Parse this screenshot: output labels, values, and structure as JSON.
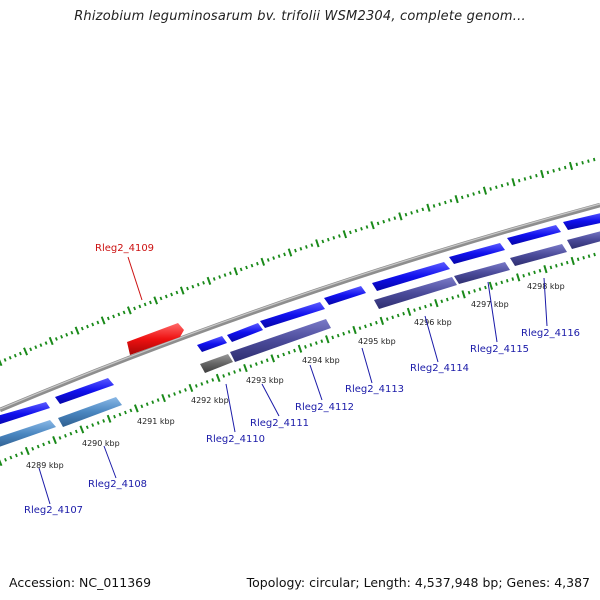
{
  "title": "Rhizobium leguminosarum bv. trifolii WSM2304, complete genom...",
  "footer": {
    "accession": "Accession: NC_011369",
    "summary": "Topology: circular; Length: 4,537,948 bp; Genes: 4,387"
  },
  "colors": {
    "backbone": "#8a8a8a",
    "ticks": "#1a8a1a",
    "forward_gene": "#1010ee",
    "reverse_gene_blue": "#4a86c0",
    "reverse_gene_purple": "#4b4b9a",
    "reverse_gene_gray": "#666666",
    "highlight_gene": "#ee1111",
    "label_blue": "#1a1aa8",
    "label_red": "#cc1111"
  },
  "kbp_labels": [
    "4289 kbp",
    "4290 kbp",
    "4291 kbp",
    "4292 kbp",
    "4293 kbp",
    "4294 kbp",
    "4295 kbp",
    "4296 kbp",
    "4297 kbp",
    "4298 kbp"
  ],
  "genes": [
    {
      "id": "Rleg2_4107",
      "label": "Rleg2_4107",
      "strand": "reverse",
      "color": "blue"
    },
    {
      "id": "Rleg2_4108",
      "label": "Rleg2_4108",
      "strand": "reverse",
      "color": "blue"
    },
    {
      "id": "Rleg2_4109",
      "label": "Rleg2_4109",
      "strand": "forward",
      "color": "red",
      "highlighted": true
    },
    {
      "id": "Rleg2_4110",
      "label": "Rleg2_4110",
      "strand": "reverse",
      "color": "gray"
    },
    {
      "id": "Rleg2_4111",
      "label": "Rleg2_4111",
      "strand": "reverse",
      "color": "purple"
    },
    {
      "id": "Rleg2_4112",
      "label": "Rleg2_4112",
      "strand": "forward",
      "color": "blue"
    },
    {
      "id": "Rleg2_4113",
      "label": "Rleg2_4113",
      "strand": "forward",
      "color": "blue"
    },
    {
      "id": "Rleg2_4114",
      "label": "Rleg2_4114",
      "strand": "reverse",
      "color": "purple"
    },
    {
      "id": "Rleg2_4115",
      "label": "Rleg2_4115",
      "strand": "reverse",
      "color": "purple"
    },
    {
      "id": "Rleg2_4116",
      "label": "Rleg2_4116",
      "strand": "reverse",
      "color": "purple"
    }
  ]
}
